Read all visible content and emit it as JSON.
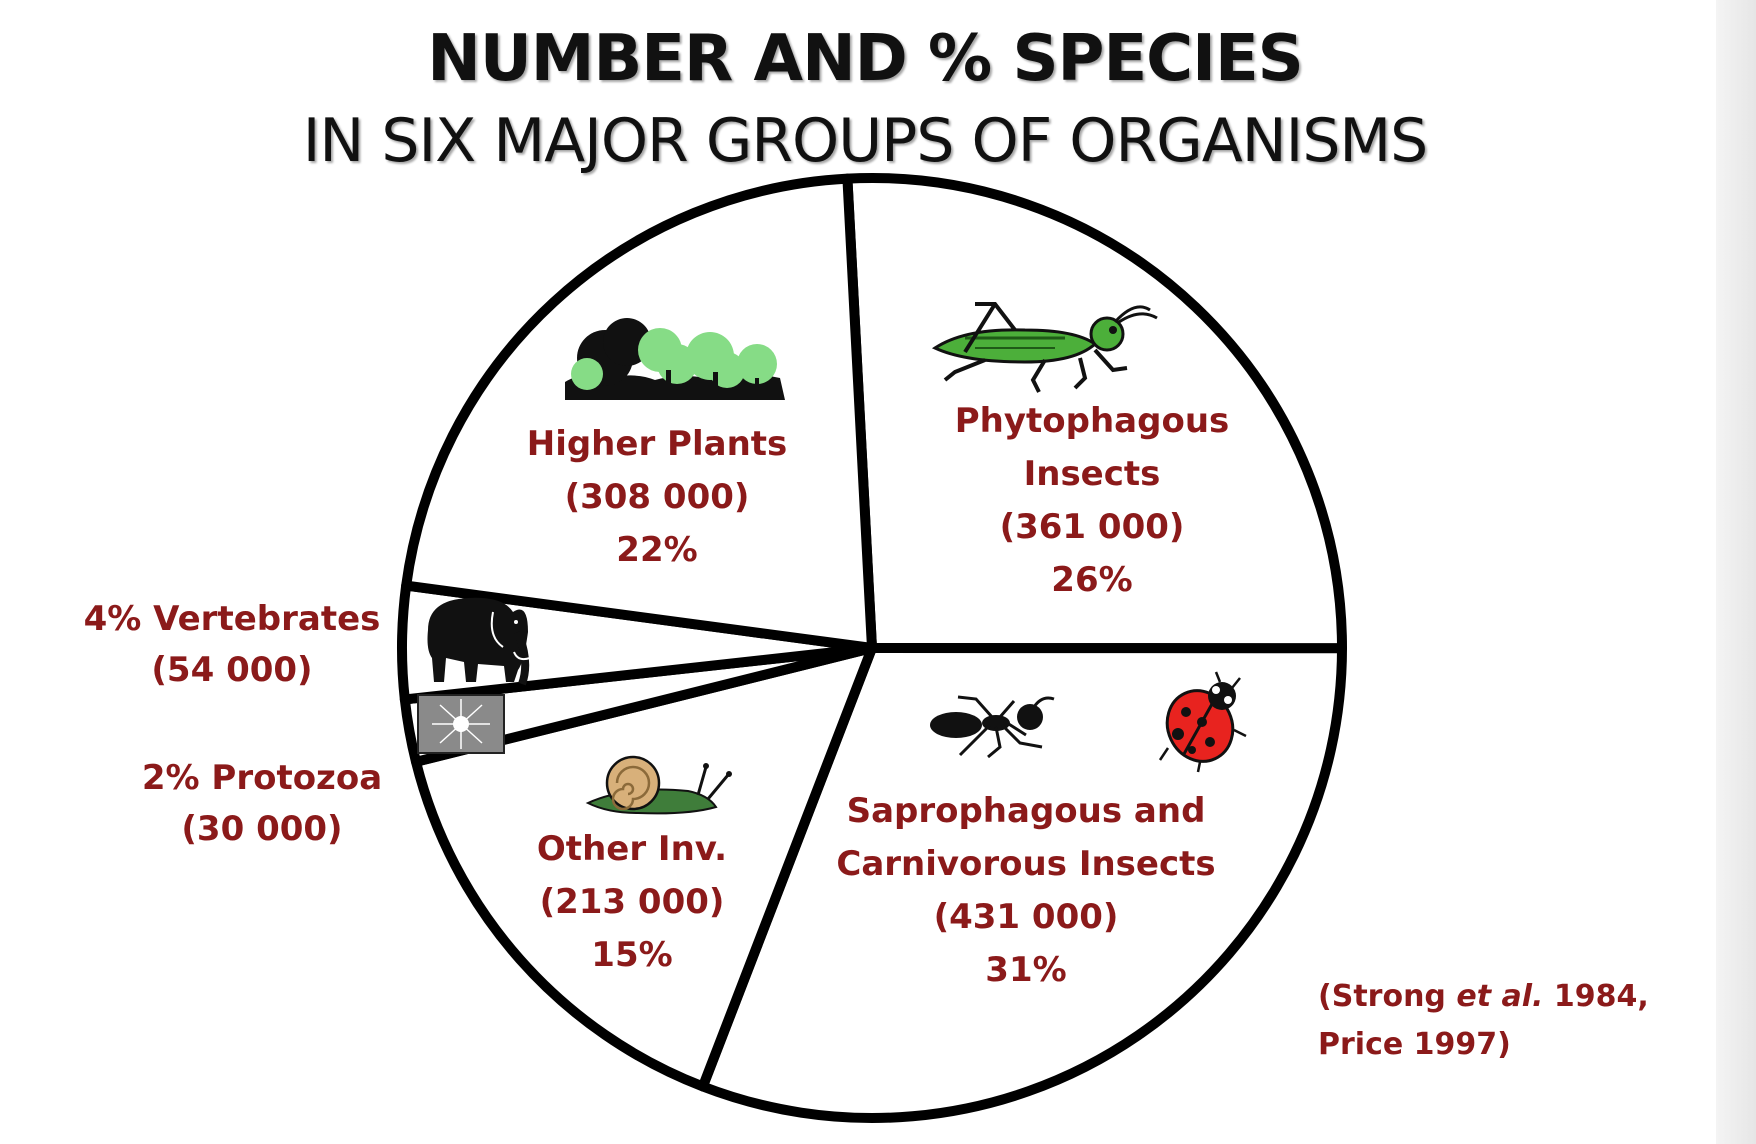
{
  "header": {
    "title": "NUMBER AND % SPECIES",
    "subtitle": "IN SIX MAJOR GROUPS OF ORGANISMS"
  },
  "colors": {
    "label": "#8b1a1a",
    "outline": "#000000",
    "tree_light": "#86dc86",
    "tree_dark": "#111111",
    "grasshopper": "#4caf3a",
    "ladybug": "#e8231f",
    "snail_shell": "#d8b07a",
    "snail_body": "#3f7d3a"
  },
  "chart_data": {
    "type": "pie",
    "slices": [
      {
        "key": "phytophagous",
        "name": "Phytophagous Insects",
        "species": 361000,
        "percent": 26,
        "label_lines": [
          "Phytophagous",
          "Insects",
          "(361 000)",
          "26%"
        ],
        "icon": "grasshopper-icon"
      },
      {
        "key": "sapro",
        "name": "Saprophagous and Carnivorous Insects",
        "species": 431000,
        "percent": 31,
        "label_lines": [
          "Saprophagous and",
          "Carnivorous Insects",
          "(431 000)",
          "31%"
        ],
        "icon": "ant-and-ladybug-icon"
      },
      {
        "key": "other_inv",
        "name": "Other Inv.",
        "species": 213000,
        "percent": 15,
        "label_lines": [
          "Other Inv.",
          "(213 000)",
          "15%"
        ],
        "icon": "snail-icon"
      },
      {
        "key": "protozoa",
        "name": "Protozoa",
        "species": 30000,
        "percent": 2,
        "label_lines": [
          "2% Protozoa",
          "(30 000)"
        ],
        "icon": "protozoa-icon"
      },
      {
        "key": "vertebrates",
        "name": "Vertebrates",
        "species": 54000,
        "percent": 4,
        "label_lines": [
          "4% Vertebrates",
          "(54 000)"
        ],
        "icon": "elephant-icon"
      },
      {
        "key": "plants",
        "name": "Higher Plants",
        "species": 308000,
        "percent": 22,
        "label_lines": [
          "Higher Plants",
          "(308 000)",
          "22%"
        ],
        "icon": "trees-icon"
      }
    ]
  },
  "source": {
    "line1_prefix": "(Strong ",
    "line1_italic": "et al.",
    "line1_suffix": " 1984,",
    "line2": "Price 1997)"
  }
}
